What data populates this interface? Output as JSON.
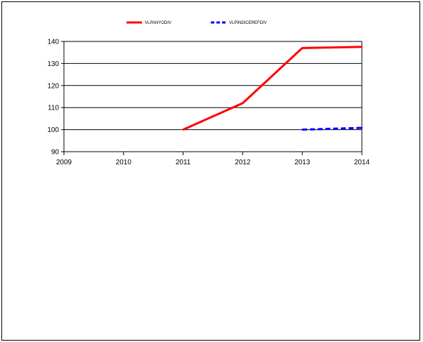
{
  "chart_data": {
    "type": "line",
    "title": "",
    "xlabel": "",
    "ylabel": "",
    "categories": [
      "2009",
      "2010",
      "2011",
      "2012",
      "2013",
      "2014"
    ],
    "ylim": [
      90,
      140
    ],
    "yticks": [
      90,
      100,
      110,
      120,
      130,
      140
    ],
    "grid": "horizontal",
    "legend_position": "top-center",
    "series": [
      {
        "name": "VLPANYODIV",
        "color": "#ff0000",
        "style": "solid",
        "values": [
          null,
          null,
          100,
          112,
          137,
          137.5
        ]
      },
      {
        "name": "VLPINDICEREFDIV",
        "color": "#0000ff",
        "style": "dashed",
        "values": [
          null,
          null,
          null,
          null,
          100,
          100.8
        ]
      }
    ]
  }
}
